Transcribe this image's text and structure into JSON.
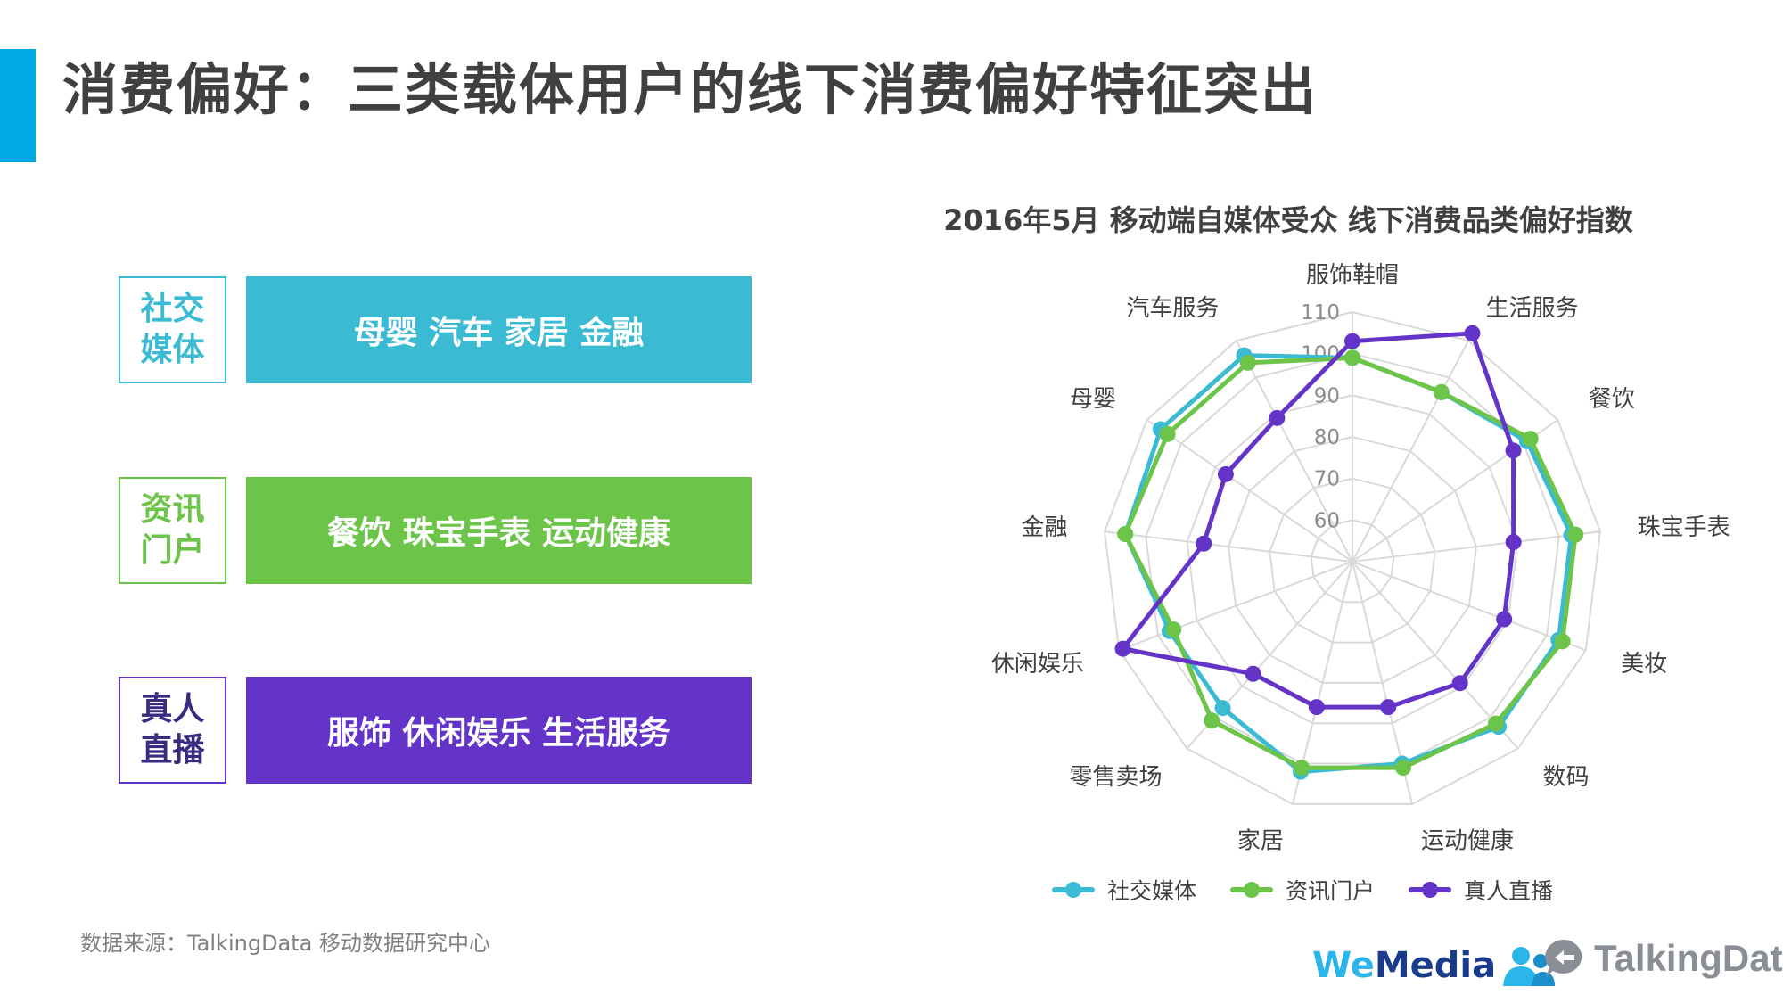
{
  "page": {
    "title": "消费偏好：三类载体用户的线下消费偏好特征突出",
    "source": "数据来源：TalkingData 移动数据研究中心"
  },
  "categories": [
    {
      "label": "社交媒体",
      "items": "母婴 汽车 家居 金融",
      "color": "#3bbbd3"
    },
    {
      "label": "资讯门户",
      "items": "餐饮 珠宝手表 运动健康",
      "color": "#6cc449"
    },
    {
      "label": "真人直播",
      "items": "服饰 休闲娱乐 生活服务",
      "color": "#6434c8"
    }
  ],
  "logos": {
    "wemedia_we": "We",
    "wemedia_media": "Media",
    "talkingdata": "TalkingData"
  },
  "chart_data": {
    "type": "radar",
    "title": "2016年5月 移动端自媒体受众 线下消费品类偏好指数",
    "axes": [
      "服饰鞋帽",
      "生活服务",
      "餐饮",
      "珠宝手表",
      "美妆",
      "数码",
      "运动健康",
      "家居",
      "零售卖场",
      "休闲娱乐",
      "金融",
      "母婴",
      "汽车服务"
    ],
    "rlim": [
      50,
      110
    ],
    "ticks": [
      60,
      70,
      80,
      90,
      100,
      110
    ],
    "grid": true,
    "legend_position": "bottom",
    "series": [
      {
        "name": "社交媒体",
        "color": "#3bbbd3",
        "values": [
          99,
          96,
          101,
          103,
          103,
          103,
          100,
          102,
          97,
          97,
          105,
          106,
          106
        ]
      },
      {
        "name": "资讯门户",
        "color": "#6cc449",
        "values": [
          99,
          96,
          102,
          104,
          104,
          102,
          101,
          101,
          101,
          96,
          105,
          104,
          104
        ]
      },
      {
        "name": "真人直播",
        "color": "#6434c8",
        "values": [
          103,
          112,
          97,
          89,
          89,
          89,
          86,
          86,
          86,
          109,
          86,
          87,
          89
        ]
      }
    ]
  }
}
